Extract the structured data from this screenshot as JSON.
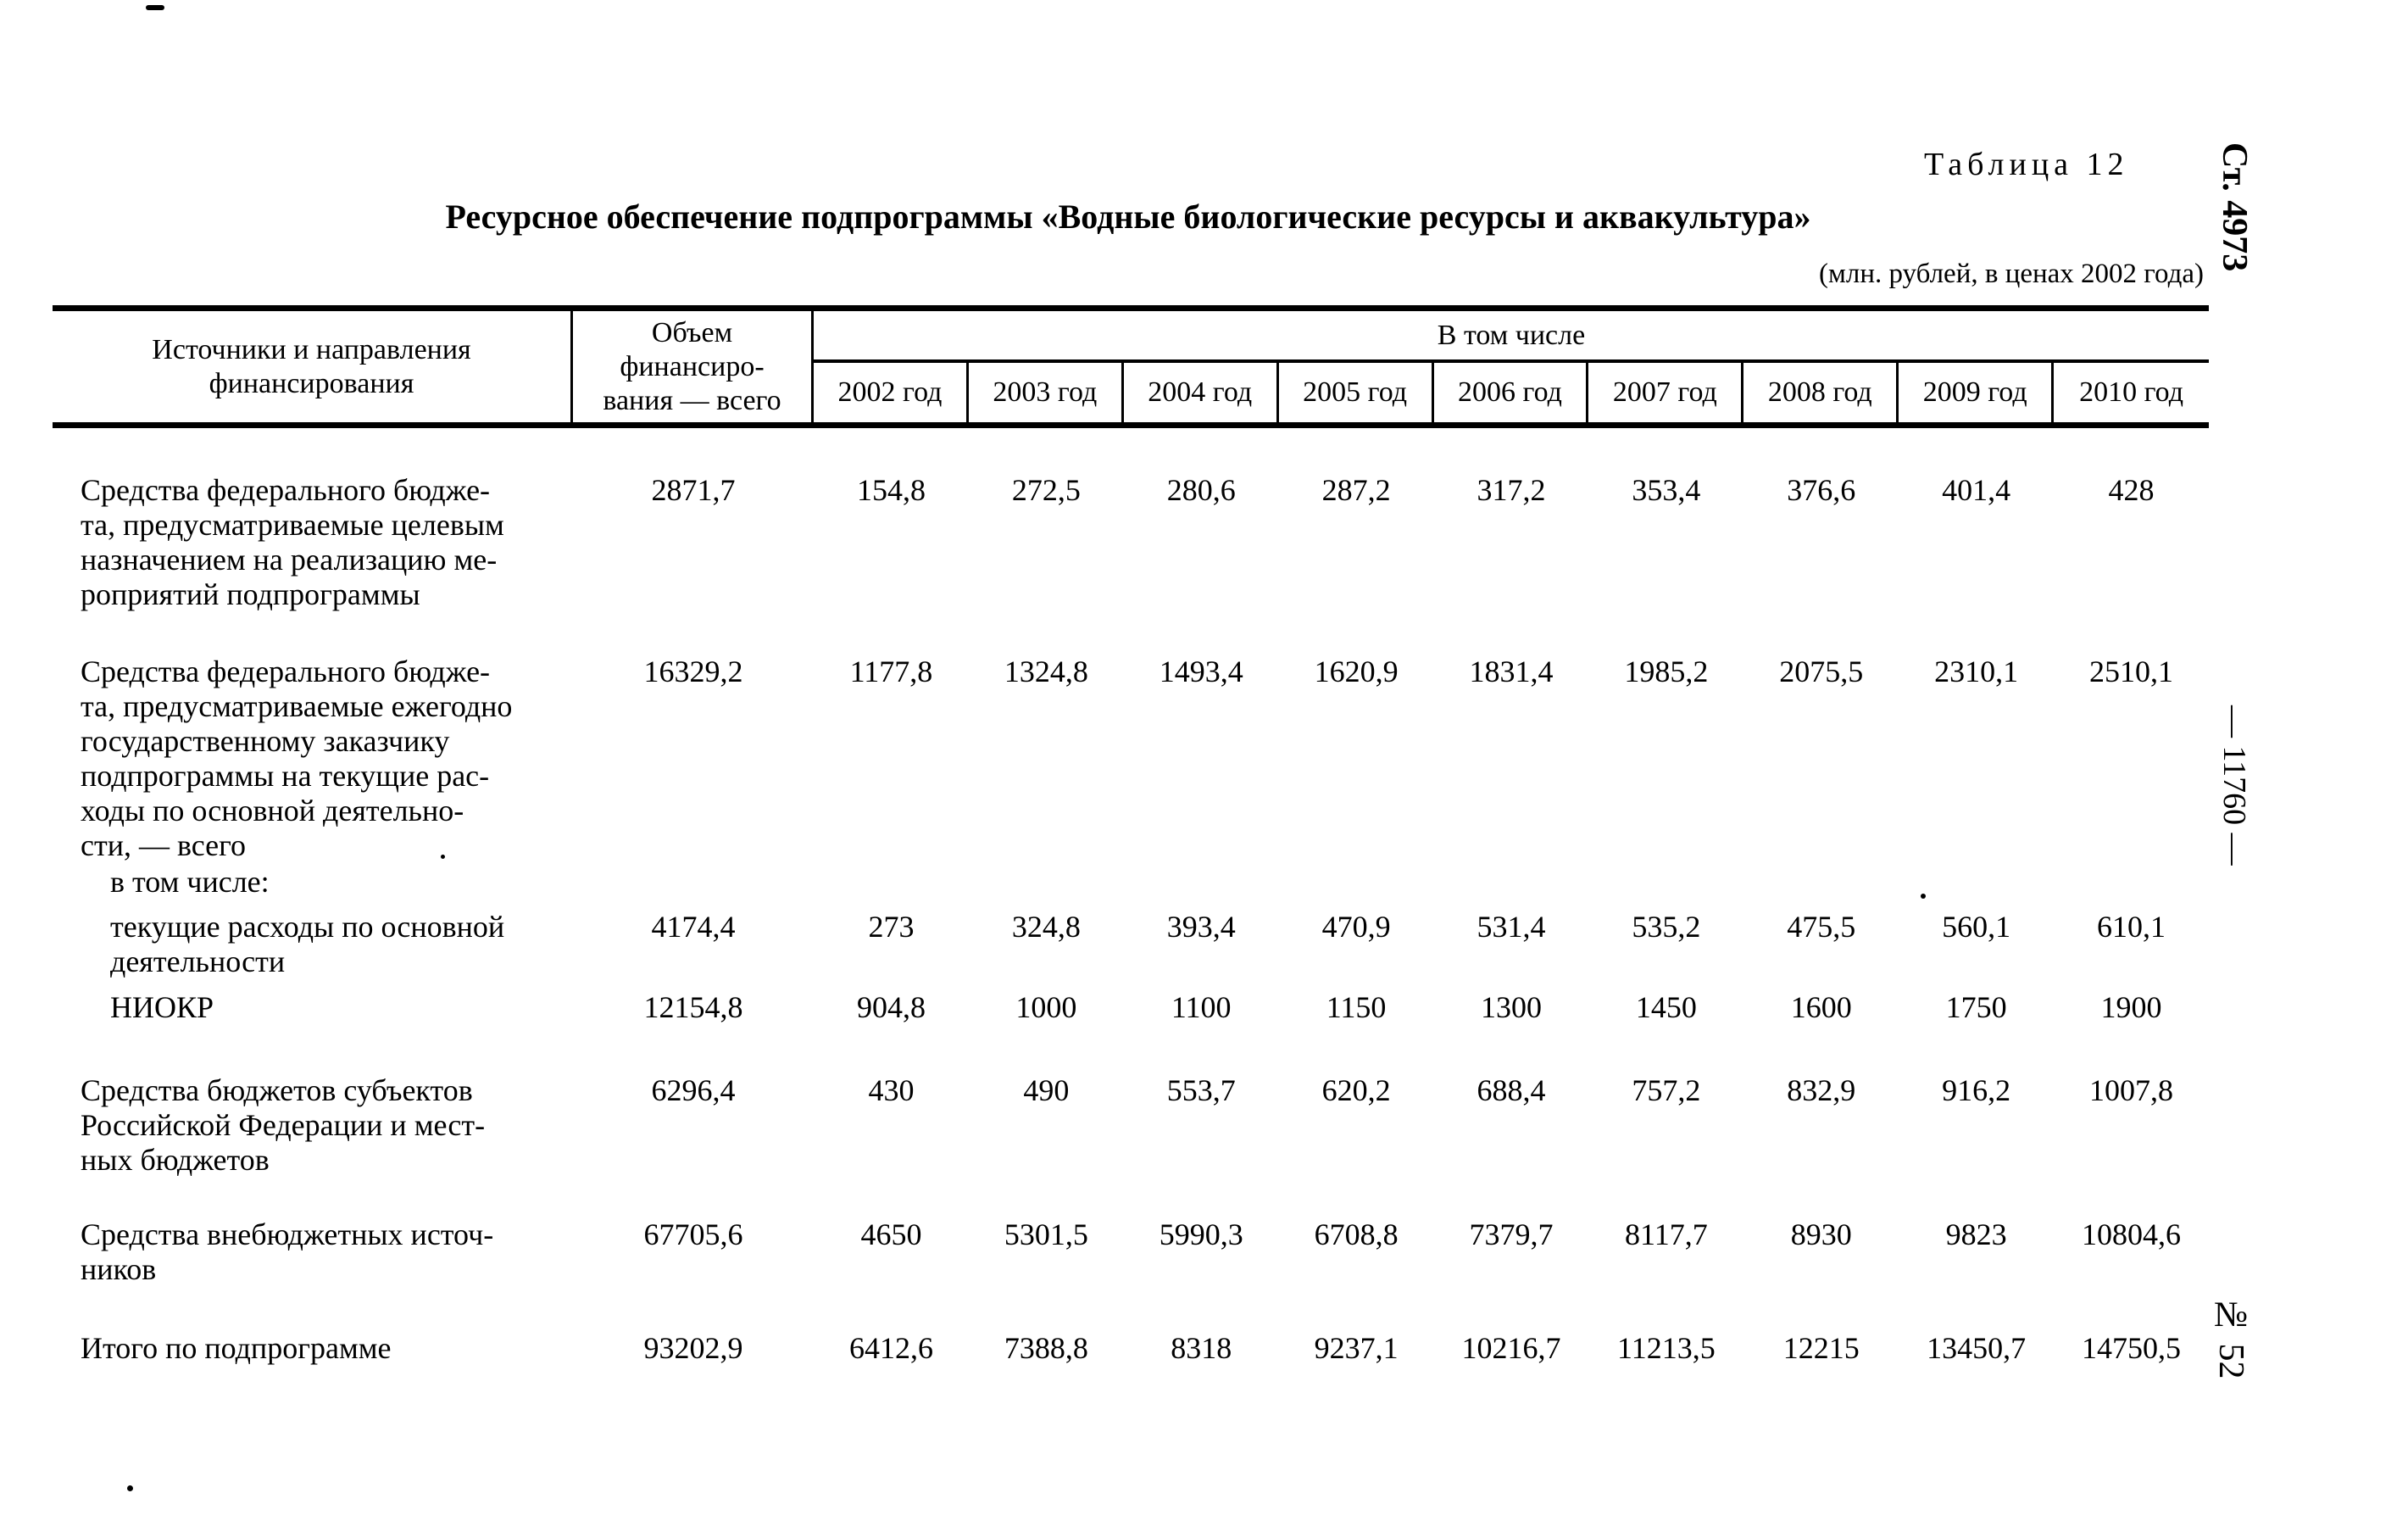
{
  "page": {
    "table_label": "Таблица 12",
    "title": "Ресурсное обеспечение подпрограммы «Водные биологические ресурсы и аквакультура»",
    "units_note": "(млн. рублей, в ценах 2002 года)",
    "margin_marks": {
      "top": "Ст. 4973",
      "middle": "— 11760 —",
      "bottom": "№ 52"
    }
  },
  "table": {
    "col_source_header": "Источники и направления\nфинансирования",
    "col_total_header": "Объем\nфинансиро-\nвания — всего",
    "group_header": "В том числе",
    "year_headers": [
      "2002 год",
      "2003 год",
      "2004 год",
      "2005 год",
      "2006 год",
      "2007 год",
      "2008 год",
      "2009 год",
      "2010 год"
    ],
    "rows": [
      {
        "label": "Средства федерального бюдже-\nта, предусматриваемые целевым\nназначением на реализацию ме-\nроприятий подпрограммы",
        "values": [
          "2871,7",
          "154,8",
          "272,5",
          "280,6",
          "287,2",
          "317,2",
          "353,4",
          "376,6",
          "401,4",
          "428"
        ]
      },
      {
        "label": "Средства федерального бюдже-\nта, предусматриваемые ежегодно\nгосударственному заказчику\nподпрограммы на текущие рас-\nходы по основной деятельно-\nсти, — всего",
        "values": [
          "16329,2",
          "1177,8",
          "1324,8",
          "1493,4",
          "1620,9",
          "1831,4",
          "1985,2",
          "2075,5",
          "2310,1",
          "2510,1"
        ]
      },
      {
        "label": "в том числе:",
        "values": []
      },
      {
        "label": "текущие расходы по основной\nдеятельности",
        "values": [
          "4174,4",
          "273",
          "324,8",
          "393,4",
          "470,9",
          "531,4",
          "535,2",
          "475,5",
          "560,1",
          "610,1"
        ]
      },
      {
        "label": "НИОКР",
        "values": [
          "12154,8",
          "904,8",
          "1000",
          "1100",
          "1150",
          "1300",
          "1450",
          "1600",
          "1750",
          "1900"
        ]
      },
      {
        "label": "Средства бюджетов субъектов\nРоссийской Федерации и мест-\nных бюджетов",
        "values": [
          "6296,4",
          "430",
          "490",
          "553,7",
          "620,2",
          "688,4",
          "757,2",
          "832,9",
          "916,2",
          "1007,8"
        ]
      },
      {
        "label": "Средства внебюджетных источ-\nников",
        "values": [
          "67705,6",
          "4650",
          "5301,5",
          "5990,3",
          "6708,8",
          "7379,7",
          "8117,7",
          "8930",
          "9823",
          "10804,6"
        ]
      },
      {
        "label": "Итого по подпрограмме",
        "values": [
          "93202,9",
          "6412,6",
          "7388,8",
          "8318",
          "9237,1",
          "10216,7",
          "11213,5",
          "12215",
          "13450,7",
          "14750,5"
        ]
      }
    ]
  }
}
